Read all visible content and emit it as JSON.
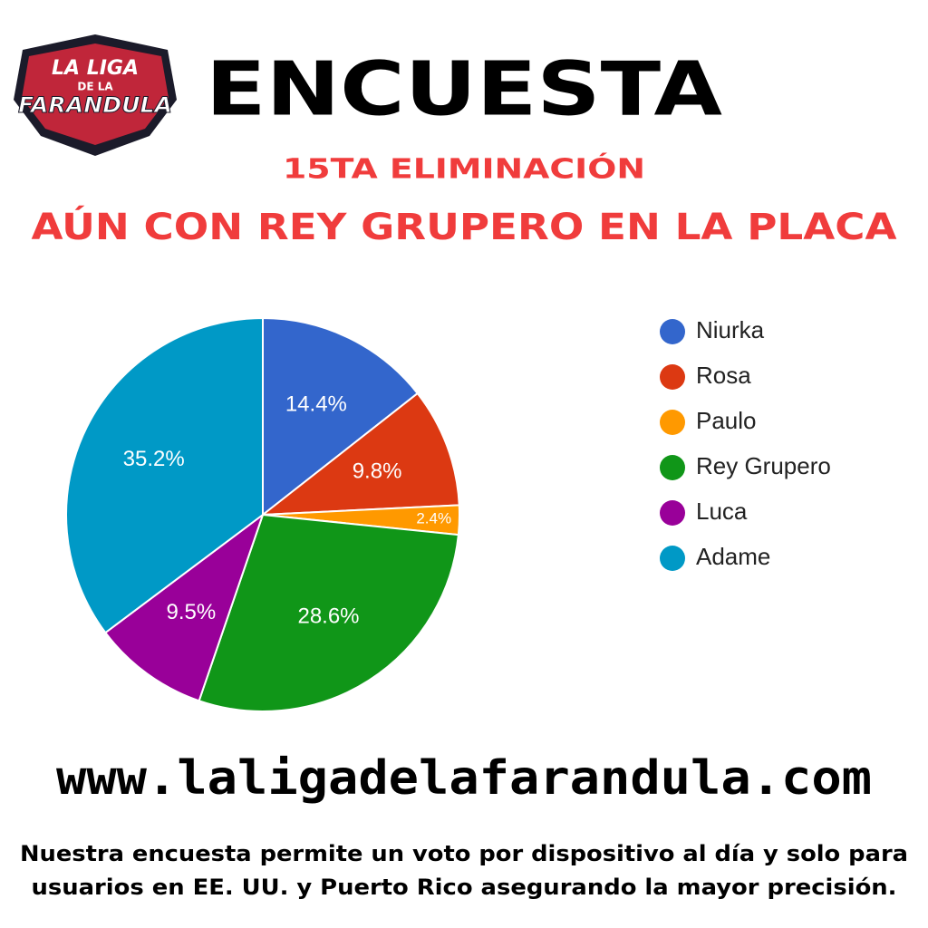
{
  "logo": {
    "line1": "LA LIGA",
    "line2": "DE LA",
    "line3": "FARANDULA"
  },
  "chart_data": {
    "type": "pie",
    "title": "ENCUESTA",
    "subtitle": [
      "15TA ELIMINACIÓN",
      "AÚN CON REY GRUPERO EN LA PLACA"
    ],
    "categories": [
      "Niurka",
      "Rosa",
      "Paulo",
      "Rey Grupero",
      "Luca",
      "Adame"
    ],
    "values": [
      14.4,
      9.8,
      2.4,
      28.6,
      9.5,
      35.2
    ],
    "value_labels": [
      "14.4%",
      "9.8%",
      "2.4%",
      "28.6%",
      "9.5%",
      "35.2%"
    ],
    "colors": [
      "#3366cc",
      "#dc3912",
      "#ff9900",
      "#109618",
      "#990099",
      "#0099c6"
    ],
    "legend": "right"
  },
  "website": "www.laligadelafarandula.com",
  "note": [
    "Nuestra encuesta permite un voto por dispositivo al día y solo para",
    "usuarios en EE. UU. y Puerto Rico asegurando la mayor precisión."
  ]
}
